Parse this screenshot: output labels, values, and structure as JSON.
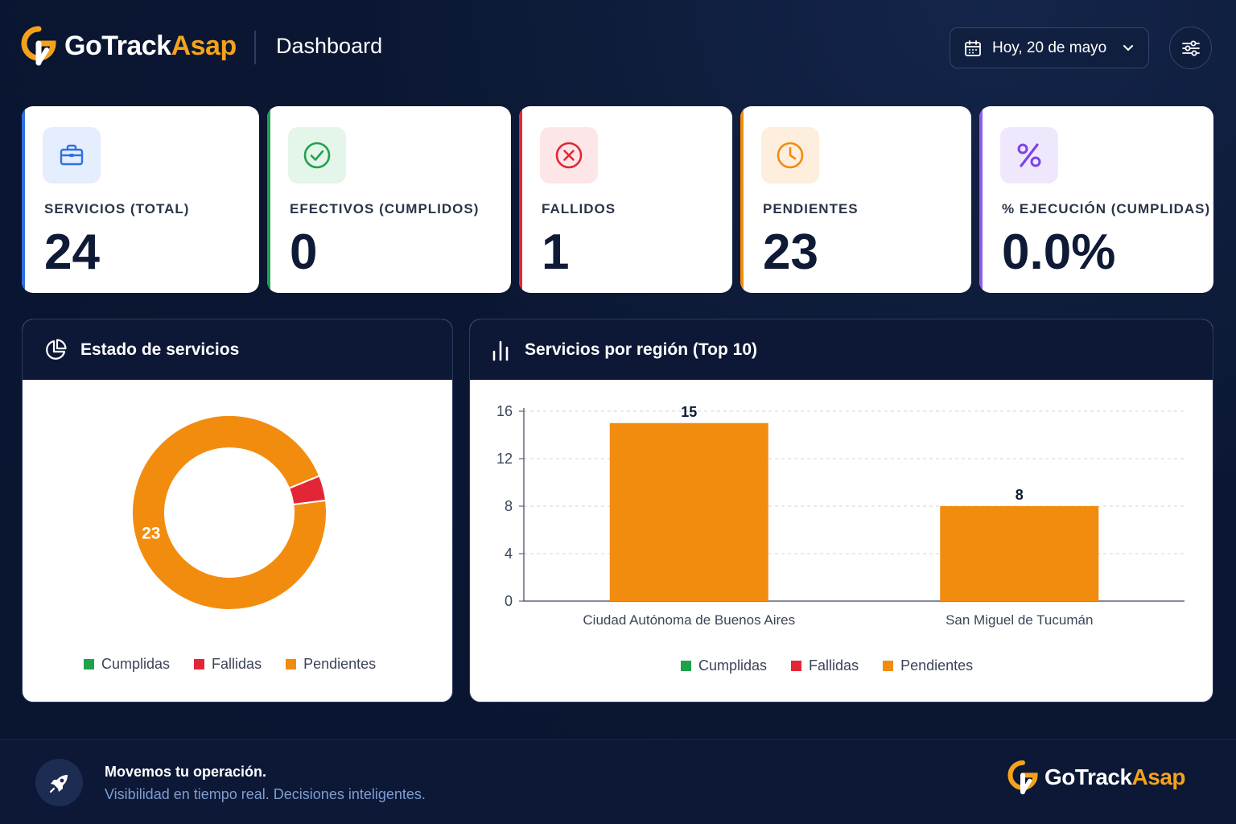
{
  "header": {
    "brand_part1": "GoTrack",
    "brand_part2": "Asap",
    "page_title": "Dashboard",
    "date_label": "Hoy, 20 de mayo"
  },
  "kpis": [
    {
      "label": "SERVICIOS (TOTAL)",
      "value": "24",
      "icon": "briefcase-icon",
      "accent": "#2f6fe4",
      "icon_bg": "#e4eefc",
      "icon_color": "#2f6fe4"
    },
    {
      "label": "EFECTIVOS (CUMPLIDOS)",
      "value": "0",
      "icon": "check-circle-icon",
      "accent": "#1fa24a",
      "icon_bg": "#e4f5ea",
      "icon_color": "#1fa24a"
    },
    {
      "label": "FALLIDOS",
      "value": "1",
      "icon": "x-circle-icon",
      "accent": "#e32636",
      "icon_bg": "#fde6e8",
      "icon_color": "#e32636"
    },
    {
      "label": "PENDIENTES",
      "value": "23",
      "icon": "clock-icon",
      "accent": "#f28c0f",
      "icon_bg": "#fdeedd",
      "icon_color": "#f28c0f"
    },
    {
      "label": "% EJECUCIÓN (CUMPLIDAS)",
      "value": "0.0%",
      "icon": "percent-icon",
      "accent": "#8e5cf0",
      "icon_bg": "#efe8fd",
      "icon_color": "#7a44e6"
    }
  ],
  "status_panel": {
    "title": "Estado de servicios",
    "icon": "pie-chart-icon"
  },
  "region_panel": {
    "title": "Servicios por región (Top 10)",
    "icon": "bar-chart-icon"
  },
  "legend": [
    {
      "label": "Cumplidas",
      "color": "#1fa24a"
    },
    {
      "label": "Fallidas",
      "color": "#e32636"
    },
    {
      "label": "Pendientes",
      "color": "#f28c0f"
    }
  ],
  "chart_data": [
    {
      "type": "pie",
      "categories": [
        "Cumplidas",
        "Fallidas",
        "Pendientes"
      ],
      "values": [
        0,
        1,
        23
      ],
      "colors": [
        "#1fa24a",
        "#e32636",
        "#f28c0f"
      ],
      "data_labels": [
        "",
        "",
        "23"
      ],
      "donut": true,
      "legend_position": "bottom"
    },
    {
      "type": "bar",
      "categories": [
        "Ciudad Autónoma de Buenos Aires",
        "San Miguel de Tucumán"
      ],
      "series": [
        {
          "name": "Cumplidas",
          "values": [
            0,
            0
          ],
          "color": "#1fa24a"
        },
        {
          "name": "Fallidas",
          "values": [
            0,
            0
          ],
          "color": "#e32636"
        },
        {
          "name": "Pendientes",
          "values": [
            15,
            8
          ],
          "color": "#f28c0f"
        }
      ],
      "data_labels": [
        "15",
        "8"
      ],
      "yticks": [
        "0",
        "4",
        "8",
        "12",
        "16"
      ],
      "ylim": [
        0,
        16
      ],
      "grid": true,
      "legend_position": "bottom"
    }
  ],
  "footer": {
    "title": "Movemos tu operación.",
    "subtitle": "Visibilidad en tiempo real. Decisiones inteligentes.",
    "brand_part1": "GoTrack",
    "brand_part2": "Asap"
  }
}
